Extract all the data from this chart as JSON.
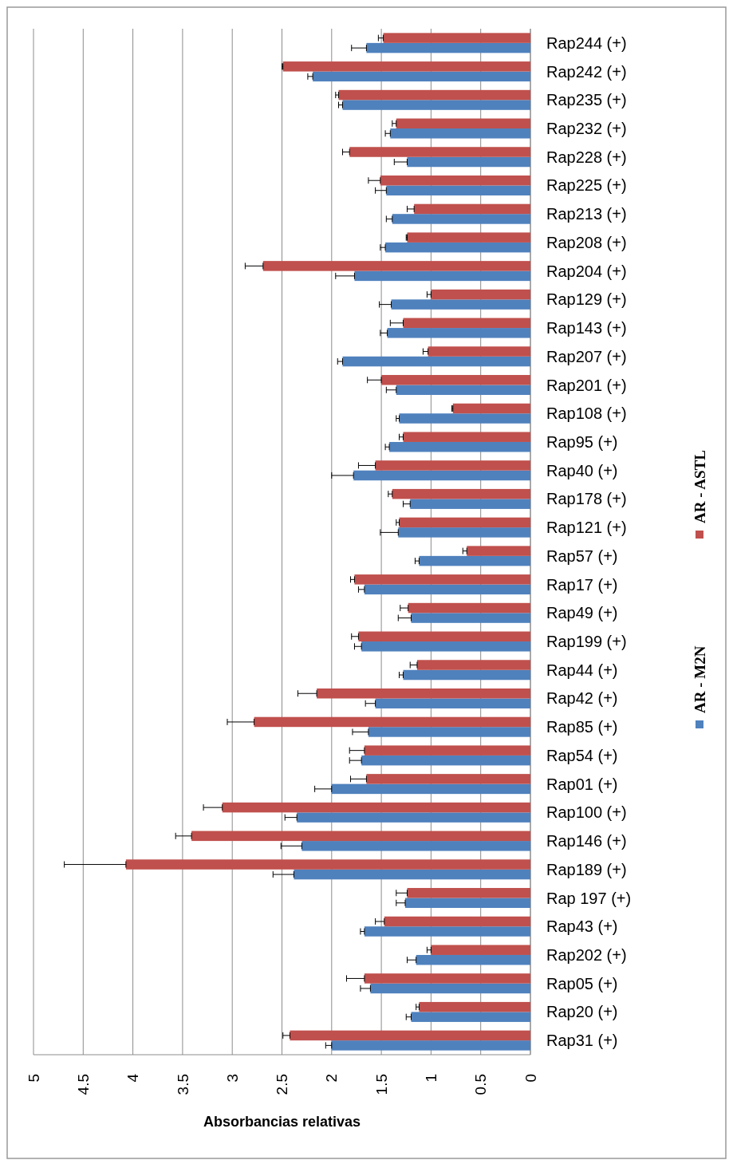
{
  "chart_data": {
    "type": "bar",
    "orientation": "horizontal",
    "xlabel": "Absorbancias relativas",
    "categories": [
      "Rap244 (+)",
      "Rap242 (+)",
      "Rap235 (+)",
      "Rap232 (+)",
      "Rap228 (+)",
      "Rap225 (+)",
      "Rap213 (+)",
      "Rap208 (+)",
      "Rap204 (+)",
      "Rap129 (+)",
      "Rap143 (+)",
      "Rap207 (+)",
      "Rap201 (+)",
      "Rap108 (+)",
      "Rap95 (+)",
      "Rap40 (+)",
      "Rap178 (+)",
      "Rap121 (+)",
      "Rap57 (+)",
      "Rap17 (+)",
      "Rap49 (+)",
      "Rap199 (+)",
      "Rap44 (+)",
      "Rap42 (+)",
      "Rap85 (+)",
      "Rap54 (+)",
      "Rap01 (+)",
      "Rap100 (+)",
      "Rap146 (+)",
      "Rap189 (+)",
      "Rap 197 (+)",
      "Rap43 (+)",
      "Rap202 (+)",
      "Rap05 (+)",
      "Rap20 (+)",
      "Rap31 (+)"
    ],
    "series": [
      {
        "name": "AR - M2N",
        "color": "#4f81bd",
        "values": [
          1.65,
          2.19,
          1.89,
          1.41,
          1.24,
          1.45,
          1.39,
          1.46,
          1.77,
          1.4,
          1.44,
          1.89,
          1.35,
          1.32,
          1.42,
          1.78,
          1.21,
          1.33,
          1.12,
          1.67,
          1.2,
          1.7,
          1.28,
          1.56,
          1.63,
          1.7,
          2.0,
          2.35,
          2.3,
          2.38,
          1.26,
          1.67,
          1.15,
          1.61,
          1.2,
          2.0
        ],
        "errors": [
          [
            1.65,
            1.8
          ],
          [
            2.19,
            2.24
          ],
          [
            1.89,
            1.93
          ],
          [
            1.41,
            1.46
          ],
          [
            1.24,
            1.37
          ],
          [
            1.45,
            1.56
          ],
          [
            1.39,
            1.45
          ],
          [
            1.46,
            1.51
          ],
          [
            1.77,
            1.96
          ],
          [
            1.4,
            1.52
          ],
          [
            1.44,
            1.51
          ],
          [
            1.89,
            1.94
          ],
          [
            1.35,
            1.45
          ],
          [
            1.32,
            1.35
          ],
          [
            1.42,
            1.46
          ],
          [
            1.78,
            2.0
          ],
          [
            1.21,
            1.28
          ],
          [
            1.33,
            1.51
          ],
          [
            1.12,
            1.16
          ],
          [
            1.67,
            1.73
          ],
          [
            1.2,
            1.33
          ],
          [
            1.7,
            1.77
          ],
          [
            1.28,
            1.32
          ],
          [
            1.56,
            1.66
          ],
          [
            1.63,
            1.79
          ],
          [
            1.7,
            1.82
          ],
          [
            2.0,
            2.17
          ],
          [
            2.35,
            2.47
          ],
          [
            2.3,
            2.51
          ],
          [
            2.38,
            2.59
          ],
          [
            1.26,
            1.35
          ],
          [
            1.67,
            1.71
          ],
          [
            1.15,
            1.24
          ],
          [
            1.61,
            1.71
          ],
          [
            1.2,
            1.25
          ],
          [
            2.0,
            2.06
          ]
        ]
      },
      {
        "name": "AR - ASTL",
        "color": "#c0504d",
        "values": [
          1.48,
          2.49,
          1.93,
          1.35,
          1.82,
          1.51,
          1.17,
          1.24,
          2.69,
          1.0,
          1.28,
          1.03,
          1.5,
          0.78,
          1.28,
          1.56,
          1.39,
          1.32,
          0.64,
          1.77,
          1.23,
          1.73,
          1.14,
          2.15,
          2.78,
          1.67,
          1.65,
          3.1,
          3.41,
          4.07,
          1.24,
          1.47,
          1.0,
          1.67,
          1.12,
          2.42
        ],
        "errors": [
          [
            1.48,
            1.53
          ],
          [
            2.49,
            2.5
          ],
          [
            1.93,
            1.96
          ],
          [
            1.35,
            1.39
          ],
          [
            1.82,
            1.89
          ],
          [
            1.51,
            1.63
          ],
          [
            1.17,
            1.24
          ],
          [
            1.24,
            1.25
          ],
          [
            2.69,
            2.87
          ],
          [
            1.0,
            1.04
          ],
          [
            1.28,
            1.41
          ],
          [
            1.03,
            1.08
          ],
          [
            1.5,
            1.64
          ],
          [
            0.78,
            0.79
          ],
          [
            1.28,
            1.32
          ],
          [
            1.56,
            1.73
          ],
          [
            1.39,
            1.43
          ],
          [
            1.32,
            1.35
          ],
          [
            0.64,
            0.68
          ],
          [
            1.77,
            1.81
          ],
          [
            1.23,
            1.31
          ],
          [
            1.73,
            1.8
          ],
          [
            1.14,
            1.21
          ],
          [
            2.15,
            2.34
          ],
          [
            2.78,
            3.05
          ],
          [
            1.67,
            1.82
          ],
          [
            1.65,
            1.81
          ],
          [
            3.1,
            3.29
          ],
          [
            3.41,
            3.57
          ],
          [
            4.07,
            4.69
          ],
          [
            1.24,
            1.35
          ],
          [
            1.47,
            1.56
          ],
          [
            1.0,
            1.04
          ],
          [
            1.67,
            1.85
          ],
          [
            1.12,
            1.15
          ],
          [
            2.42,
            2.49
          ]
        ]
      }
    ],
    "xlim": [
      5,
      0
    ],
    "xticks": [
      5,
      4.5,
      4,
      3.5,
      3,
      2.5,
      2,
      1.5,
      1,
      0.5,
      0
    ],
    "grid": "x",
    "legend": "right"
  }
}
